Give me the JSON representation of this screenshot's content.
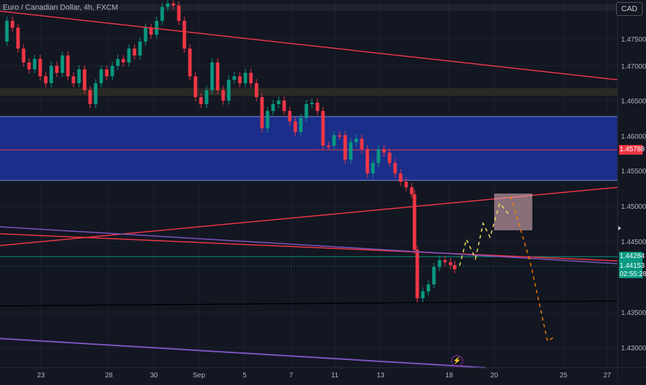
{
  "header": {
    "symbol": "Euro / Canadian Dollar, 4h, FXCM",
    "currency_button": "CAD"
  },
  "price_axis": {
    "ticks": [
      "1.47500",
      "1.47000",
      "1.46500",
      "1.46000",
      "1.45500",
      "1.45000",
      "1.44500",
      "1.43500",
      "1.43000"
    ],
    "marker_red": "1.45788",
    "marker_green": "1.44284",
    "last_price": "1.44153",
    "countdown": "02:55:28"
  },
  "time_axis": {
    "ticks": [
      "23",
      "28",
      "30",
      "Sep",
      "5",
      "7",
      "11",
      "13",
      "18",
      "20",
      "25",
      "27"
    ]
  },
  "colors": {
    "background": "#131722",
    "bull": "#089981",
    "bear": "#f23645",
    "zone_blue": "#1a2e8a",
    "trend_red": "#f23645",
    "trend_purple": "#7e57c2",
    "projection_yellow": "#f5e663",
    "projection_orange": "#f57c00",
    "target_box": "#e8b7c0"
  },
  "icons": {
    "event": "flash-icon"
  }
}
